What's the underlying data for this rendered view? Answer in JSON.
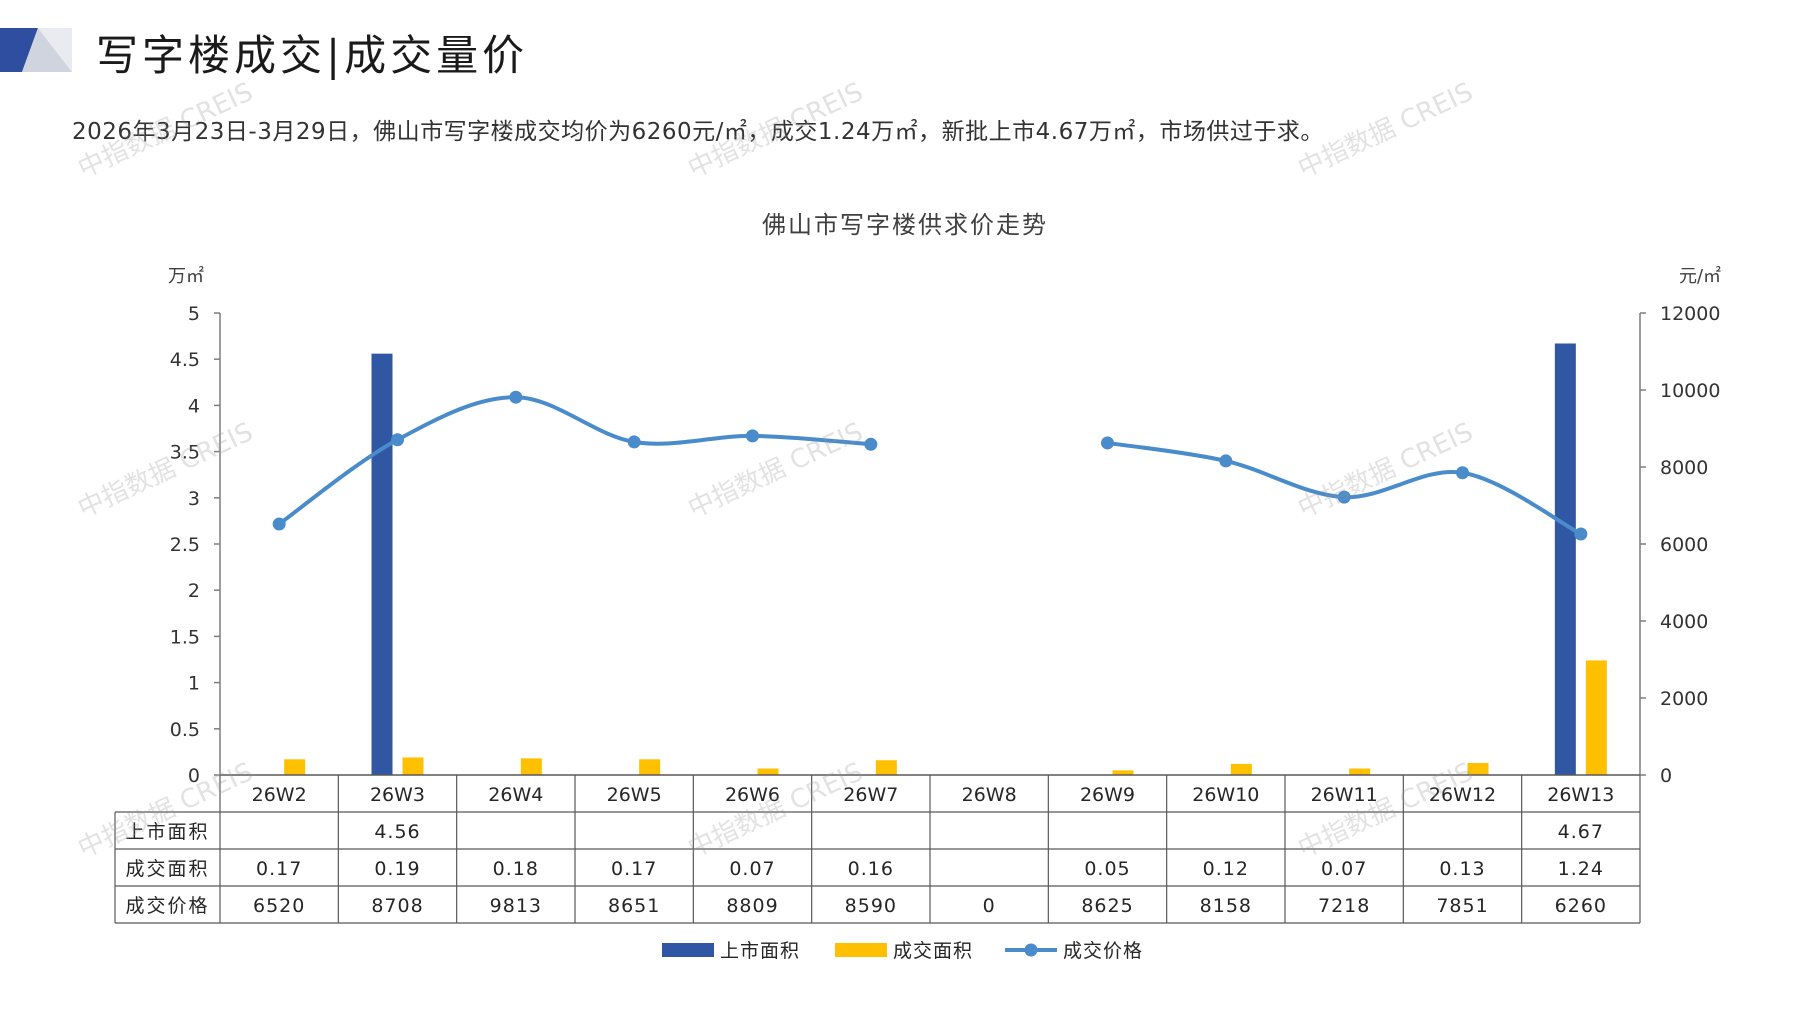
{
  "header": {
    "title": "写字楼成交|成交量价",
    "summary": "2026年3月23日-3月29日，佛山市写字楼成交均价为6260元/㎡，成交1.24万㎡，新批上市4.67万㎡，市场供过于求。"
  },
  "watermark_text": "中指数据 CREIS",
  "colors": {
    "supply": "#2f57a4",
    "deal_area": "#ffc000",
    "price": "#4a8ccb",
    "axis": "#7f7f7f",
    "header_dark": "#2f4ea0",
    "header_light": "#d0d4de"
  },
  "chart_data": {
    "type": "bar",
    "title": "佛山市写字楼供求价走势",
    "categories": [
      "26W2",
      "26W3",
      "26W4",
      "26W5",
      "26W6",
      "26W7",
      "26W8",
      "26W9",
      "26W10",
      "26W11",
      "26W12",
      "26W13"
    ],
    "y_left": {
      "unit": "万㎡",
      "min": 0,
      "max": 5,
      "ticks": [
        "0",
        "0.5",
        "1",
        "1.5",
        "2",
        "2.5",
        "3",
        "3.5",
        "4",
        "4.5",
        "5"
      ]
    },
    "y_right": {
      "unit": "元/㎡",
      "min": 0,
      "max": 12000,
      "ticks": [
        "0",
        "2000",
        "4000",
        "6000",
        "8000",
        "10000",
        "12000"
      ]
    },
    "series": [
      {
        "name": "上市面积",
        "type": "bar",
        "axis": "left",
        "values": [
          null,
          4.56,
          null,
          null,
          null,
          null,
          null,
          null,
          null,
          null,
          null,
          4.67
        ],
        "labels": [
          "",
          "4.56",
          "",
          "",
          "",
          "",
          "",
          "",
          "",
          "",
          "",
          "4.67"
        ]
      },
      {
        "name": "成交面积",
        "type": "bar",
        "axis": "left",
        "values": [
          0.17,
          0.19,
          0.18,
          0.17,
          0.07,
          0.16,
          null,
          0.05,
          0.12,
          0.07,
          0.13,
          1.24
        ],
        "labels": [
          "0.17",
          "0.19",
          "0.18",
          "0.17",
          "0.07",
          "0.16",
          "",
          "0.05",
          "0.12",
          "0.07",
          "0.13",
          "1.24"
        ]
      },
      {
        "name": "成交价格",
        "type": "line",
        "axis": "right",
        "values": [
          6520,
          8708,
          9813,
          8651,
          8809,
          8590,
          0,
          8625,
          8158,
          7218,
          7851,
          6260
        ],
        "labels": [
          "6520",
          "8708",
          "9813",
          "8651",
          "8809",
          "8590",
          "0",
          "8625",
          "8158",
          "7218",
          "7851",
          "6260"
        ],
        "gap_at_zero": true
      }
    ],
    "legend": [
      "上市面积",
      "成交面积",
      "成交价格"
    ],
    "legend_position": "bottom",
    "data_table": true,
    "grid": false
  }
}
